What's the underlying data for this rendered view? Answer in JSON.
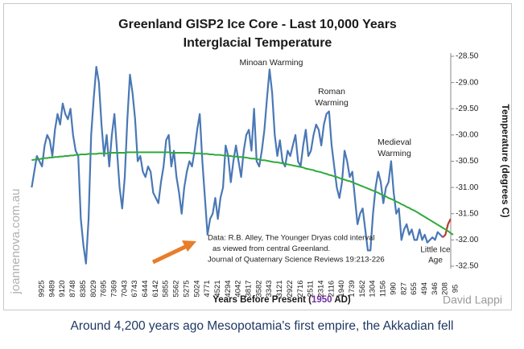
{
  "chart_data": {
    "type": "line",
    "title_lines": [
      "Greenland GISP2 Ice Core - Last 10,000 Years",
      "Interglacial Temperature"
    ],
    "x_label_parts": [
      "Years Before Present (",
      "1950",
      " AD)"
    ],
    "y_label": "Temperature (degrees C)",
    "categories": [
      null,
      null,
      null,
      "9925",
      null,
      null,
      null,
      "9489",
      null,
      null,
      null,
      "9120",
      null,
      null,
      null,
      "8748",
      null,
      null,
      null,
      "8385",
      null,
      null,
      null,
      "8029",
      null,
      null,
      null,
      "7695",
      null,
      null,
      null,
      "7369",
      null,
      null,
      null,
      "7043",
      null,
      null,
      null,
      "6743",
      null,
      null,
      null,
      "6444",
      null,
      null,
      null,
      "6142",
      null,
      null,
      null,
      "5855",
      null,
      null,
      null,
      "5562",
      null,
      null,
      null,
      "5275",
      null,
      null,
      null,
      "5024",
      null,
      null,
      null,
      "4771",
      null,
      null,
      null,
      "4521",
      null,
      null,
      null,
      "4294",
      null,
      null,
      null,
      "4042",
      null,
      null,
      null,
      "3817",
      null,
      null,
      null,
      "3582",
      null,
      null,
      null,
      "3343",
      null,
      null,
      null,
      "3121",
      null,
      null,
      null,
      "2922",
      null,
      null,
      null,
      "2716",
      null,
      null,
      null,
      "2511",
      null,
      null,
      null,
      "2314",
      null,
      null,
      null,
      "2116",
      null,
      null,
      null,
      "1940",
      null,
      null,
      null,
      "1739",
      null,
      null,
      null,
      "1562",
      null,
      null,
      null,
      "1304",
      null,
      null,
      null,
      "1156",
      null,
      null,
      null,
      "990",
      null,
      null,
      null,
      "827",
      null,
      null,
      null,
      "655",
      null,
      null,
      null,
      "494",
      null,
      null,
      null,
      "346",
      null,
      null,
      null,
      "208",
      null,
      null,
      null,
      "95"
    ],
    "series": [
      {
        "color": "#4a78b5",
        "values": [
          -31.0,
          -30.7,
          -30.4,
          -30.5,
          -30.6,
          -30.2,
          -30.0,
          -30.1,
          -30.4,
          -29.9,
          -29.6,
          -29.8,
          -29.4,
          -29.6,
          -29.7,
          -29.5,
          -30.0,
          -30.3,
          -30.4,
          -31.6,
          -32.1,
          -32.45,
          -31.6,
          -30.0,
          -29.3,
          -28.7,
          -29.0,
          -29.8,
          -30.4,
          -30.0,
          -30.6,
          -30.0,
          -29.6,
          -30.3,
          -31.0,
          -31.4,
          -30.8,
          -29.7,
          -28.85,
          -29.2,
          -29.7,
          -30.5,
          -30.4,
          -30.7,
          -30.8,
          -30.6,
          -30.7,
          -31.1,
          -31.2,
          -31.3,
          -30.9,
          -30.6,
          -30.1,
          -30.0,
          -30.6,
          -30.3,
          -30.8,
          -31.1,
          -31.5,
          -31.0,
          -30.7,
          -30.5,
          -30.6,
          -30.3,
          -29.9,
          -29.6,
          -30.5,
          -31.2,
          -31.9,
          -31.6,
          -31.5,
          -31.2,
          -31.6,
          -31.2,
          -31.0,
          -30.2,
          -30.4,
          -30.9,
          -30.5,
          -30.2,
          -30.5,
          -30.8,
          -30.3,
          -30.0,
          -29.9,
          -30.3,
          -29.5,
          -30.5,
          -30.6,
          -30.3,
          -29.9,
          -29.3,
          -28.75,
          -29.2,
          -30.0,
          -30.4,
          -30.1,
          -30.5,
          -30.6,
          -30.3,
          -30.4,
          -30.2,
          -30.0,
          -30.5,
          -30.6,
          -30.2,
          -29.9,
          -30.4,
          -30.3,
          -30.0,
          -29.8,
          -29.9,
          -30.2,
          -29.8,
          -29.6,
          -29.55,
          -30.2,
          -30.6,
          -31.0,
          -31.2,
          -30.9,
          -30.3,
          -30.5,
          -30.8,
          -30.7,
          -31.2,
          -31.7,
          -31.5,
          -31.4,
          -31.8,
          -32.2,
          -32.2,
          -31.5,
          -31.0,
          -30.7,
          -30.9,
          -31.3,
          -31.0,
          -30.9,
          -30.5,
          -31.1,
          -31.5,
          -31.4,
          -32.0,
          -31.8,
          -31.7,
          -31.9,
          -31.8,
          -32.0,
          -32.0,
          -31.8,
          -32.0,
          -31.9,
          -32.05,
          -32.0,
          -31.95,
          -32.0,
          -31.85,
          -31.9,
          -31.95,
          null,
          null,
          null,
          null
        ]
      },
      {
        "color": "#c0392b",
        "values": [
          null,
          null,
          null,
          null,
          null,
          null,
          null,
          null,
          null,
          null,
          null,
          null,
          null,
          null,
          null,
          null,
          null,
          null,
          null,
          null,
          null,
          null,
          null,
          null,
          null,
          null,
          null,
          null,
          null,
          null,
          null,
          null,
          null,
          null,
          null,
          null,
          null,
          null,
          null,
          null,
          null,
          null,
          null,
          null,
          null,
          null,
          null,
          null,
          null,
          null,
          null,
          null,
          null,
          null,
          null,
          null,
          null,
          null,
          null,
          null,
          null,
          null,
          null,
          null,
          null,
          null,
          null,
          null,
          null,
          null,
          null,
          null,
          null,
          null,
          null,
          null,
          null,
          null,
          null,
          null,
          null,
          null,
          null,
          null,
          null,
          null,
          null,
          null,
          null,
          null,
          null,
          null,
          null,
          null,
          null,
          null,
          null,
          null,
          null,
          null,
          null,
          null,
          null,
          null,
          null,
          null,
          null,
          null,
          null,
          null,
          null,
          null,
          null,
          null,
          null,
          null,
          null,
          null,
          null,
          null,
          null,
          null,
          null,
          null,
          null,
          null,
          null,
          null,
          null,
          null,
          null,
          null,
          null,
          null,
          null,
          null,
          null,
          null,
          null,
          null,
          null,
          null,
          null,
          null,
          null,
          null,
          null,
          null,
          null,
          null,
          null,
          null,
          null,
          null,
          null,
          null,
          null,
          null,
          null,
          -31.95,
          -31.9,
          -31.7,
          -31.6,
          null
        ]
      },
      {
        "color": "#2eaa3c",
        "values": [
          -30.48,
          -30.47,
          -30.47,
          -30.46,
          -30.45,
          -30.44,
          -30.44,
          -30.43,
          -30.43,
          -30.42,
          -30.42,
          -30.41,
          -30.41,
          -30.4,
          -30.4,
          -30.39,
          -30.39,
          -30.38,
          -30.38,
          -30.37,
          -30.37,
          -30.37,
          -30.36,
          -30.36,
          -30.36,
          -30.36,
          -30.35,
          -30.35,
          -30.35,
          -30.35,
          -30.34,
          -30.34,
          -30.34,
          -30.34,
          -30.34,
          -30.34,
          -30.34,
          -30.33,
          -30.33,
          -30.33,
          -30.33,
          -30.33,
          -30.33,
          -30.33,
          -30.33,
          -30.33,
          -30.33,
          -30.33,
          -30.33,
          -30.33,
          -30.33,
          -30.33,
          -30.33,
          -30.33,
          -30.34,
          -30.34,
          -30.34,
          -30.34,
          -30.34,
          -30.34,
          -30.34,
          -30.34,
          -30.35,
          -30.35,
          -30.35,
          -30.35,
          -30.36,
          -30.36,
          -30.36,
          -30.37,
          -30.37,
          -30.38,
          -30.38,
          -30.38,
          -30.39,
          -30.39,
          -30.4,
          -30.4,
          -30.41,
          -30.41,
          -30.42,
          -30.42,
          -30.43,
          -30.43,
          -30.44,
          -30.45,
          -30.45,
          -30.46,
          -30.47,
          -30.48,
          -30.48,
          -30.49,
          -30.5,
          -30.51,
          -30.52,
          -30.52,
          -30.53,
          -30.54,
          -30.55,
          -30.56,
          -30.57,
          -30.58,
          -30.59,
          -30.6,
          -30.61,
          -30.62,
          -30.64,
          -30.65,
          -30.66,
          -30.67,
          -30.69,
          -30.7,
          -30.71,
          -30.73,
          -30.74,
          -30.76,
          -30.77,
          -30.79,
          -30.8,
          -30.82,
          -30.84,
          -30.85,
          -30.87,
          -30.88,
          -30.9,
          -30.92,
          -30.94,
          -30.96,
          -30.98,
          -31.0,
          -31.02,
          -31.04,
          -31.06,
          -31.08,
          -31.1,
          -31.13,
          -31.15,
          -31.17,
          -31.2,
          -31.22,
          -31.24,
          -31.27,
          -31.29,
          -31.32,
          -31.34,
          -31.37,
          -31.39,
          -31.42,
          -31.44,
          -31.47,
          -31.5,
          -31.53,
          -31.56,
          -31.59,
          -31.62,
          -31.65,
          -31.68,
          -31.71,
          -31.74,
          -31.77,
          -31.8,
          -31.83,
          -31.87,
          -31.9
        ]
      }
    ],
    "ylim": [
      -32.5,
      -28.5
    ],
    "yticks": [
      {
        "value": -28.5,
        "label": "-28.50"
      },
      {
        "value": -29,
        "label": "-29.00"
      },
      {
        "value": -29.5,
        "label": "-29.50"
      },
      {
        "value": -30,
        "label": "-30.00"
      },
      {
        "value": -30.5,
        "label": "-30.50"
      },
      {
        "value": -31,
        "label": "-31.00"
      },
      {
        "value": -31.5,
        "label": "-31.50"
      },
      {
        "value": -32,
        "label": "-32.00"
      },
      {
        "value": -32.5,
        "label": "-32.50"
      }
    ],
    "y_axis_side": "right",
    "grid": false,
    "annotations": [
      {
        "lines": [
          "Minoan Warming"
        ]
      },
      {
        "lines": [
          "Roman",
          "Warming"
        ]
      },
      {
        "lines": [
          "Medieval",
          "Warming"
        ]
      },
      {
        "lines": [
          "Little Ice",
          "Age"
        ]
      },
      {
        "lines": [
          "Data: R.B. Alley,  The Younger Dryas cold interval",
          "as viewed from central Greenland.",
          "Journal of Quaternary  Science Reviews 19:213-226"
        ]
      }
    ],
    "watermark": "joannenova.com.au",
    "credit": "David Lappi"
  },
  "caption": "Around 4,200 years ago Mesopotamia's first empire, the Akkadian fell"
}
